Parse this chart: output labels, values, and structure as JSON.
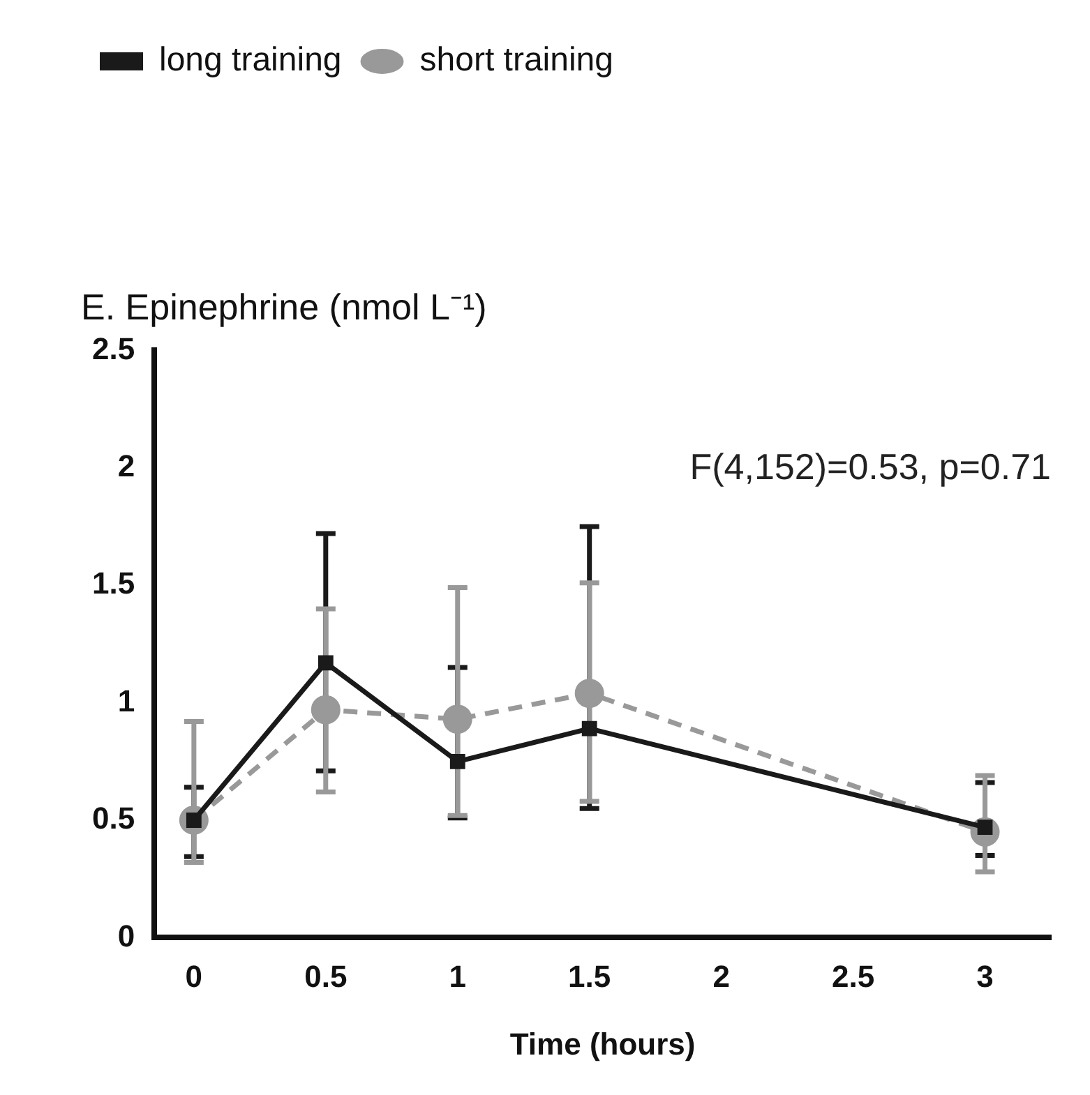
{
  "chart_data": {
    "type": "line",
    "title": "E. Epinephrine (nmol L⁻¹)",
    "xlabel": "Time (hours)",
    "x": [
      0,
      0.5,
      1,
      1.5,
      3
    ],
    "series": [
      {
        "name": "long training",
        "color": "#1a1a1a",
        "marker": "square",
        "line_style": "solid",
        "values": [
          0.5,
          1.17,
          0.75,
          0.89,
          0.47
        ],
        "errors": [
          [
            0.345,
            0.64
          ],
          [
            0.71,
            1.72
          ],
          [
            0.51,
            1.15
          ],
          [
            0.55,
            1.75
          ],
          [
            0.35,
            0.66
          ]
        ]
      },
      {
        "name": "short training",
        "color": "#999999",
        "marker": "circle",
        "line_style": "dashed",
        "values": [
          0.5,
          0.97,
          0.93,
          1.04,
          0.45
        ],
        "errors": [
          [
            0.32,
            0.92
          ],
          [
            0.62,
            1.4
          ],
          [
            0.52,
            1.49
          ],
          [
            0.58,
            1.51
          ],
          [
            0.28,
            0.69
          ]
        ]
      }
    ],
    "xlim": [
      -0.15,
      3.25
    ],
    "xticks": [
      0,
      0.5,
      1,
      1.5,
      2,
      2.5,
      3
    ],
    "ylim": [
      0,
      2.5
    ],
    "yticks": [
      0,
      0.5,
      1,
      1.5,
      2,
      2.5
    ],
    "grid": false,
    "legend": "top left",
    "annotations": [
      "F(4,152)=0.53, p=0.71"
    ]
  }
}
